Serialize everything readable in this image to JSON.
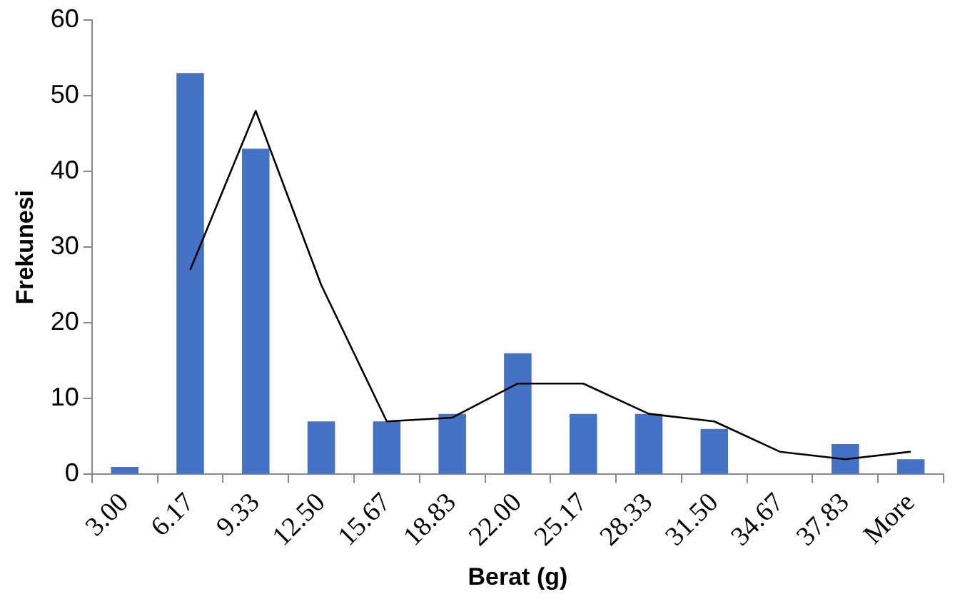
{
  "chart_data": {
    "type": "bar",
    "xlabel": "Berat (g)",
    "ylabel": "Frekunesi",
    "categories": [
      "3.00",
      "6.17",
      "9.33",
      "12.50",
      "15.67",
      "18.83",
      "22.00",
      "25.17",
      "28.33",
      "31.50",
      "34.67",
      "37.83",
      "More"
    ],
    "series": [
      {
        "color": "#4472c4",
        "values": [
          1,
          53,
          43,
          7,
          7,
          8,
          16,
          8,
          8,
          6,
          0,
          4,
          2
        ]
      },
      {
        "type": "line",
        "color": "#000000",
        "values": [
          null,
          27,
          48,
          25,
          7,
          7.5,
          12,
          12,
          8,
          7,
          3,
          2,
          3
        ]
      }
    ],
    "ylim": [
      0,
      60
    ],
    "yticks": [
      0,
      10,
      20,
      30,
      40,
      50,
      60
    ],
    "grid": false,
    "legend": false,
    "marker": "none",
    "line_style": "solid"
  }
}
